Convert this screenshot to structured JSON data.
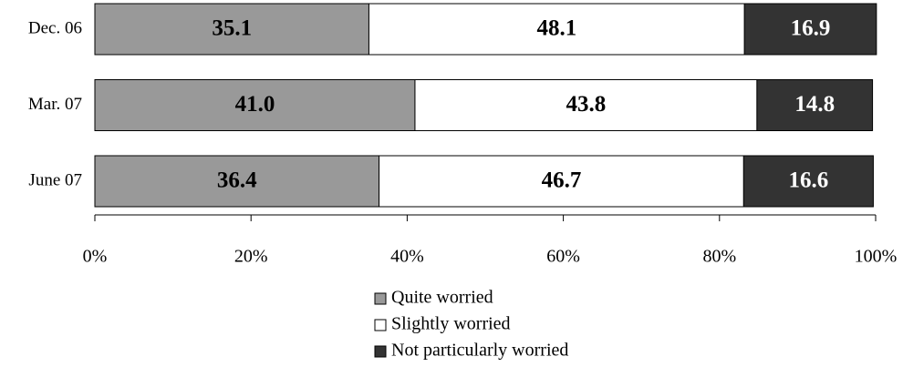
{
  "chart_data": {
    "type": "stacked-barh",
    "categories": [
      "Dec. 06",
      "Mar. 07",
      "June 07"
    ],
    "series": [
      {
        "name": "Quite worried",
        "color": "#999999",
        "values": [
          35.1,
          41.0,
          36.4
        ],
        "value_labels": [
          "35.1",
          "41.0",
          "36.4"
        ]
      },
      {
        "name": "Slightly worried",
        "color": "#ffffff",
        "values": [
          48.1,
          43.8,
          46.7
        ],
        "value_labels": [
          "48.1",
          "43.8",
          "46.7"
        ]
      },
      {
        "name": "Not particularly worried",
        "color": "#333333",
        "values": [
          16.9,
          14.8,
          16.6
        ],
        "value_labels": [
          "16.9",
          "14.8",
          "16.6"
        ]
      }
    ],
    "xlim": [
      0,
      100
    ],
    "xticks": [
      {
        "value": 0,
        "label": "0%"
      },
      {
        "value": 20,
        "label": "20%"
      },
      {
        "value": 40,
        "label": "40%"
      },
      {
        "value": 60,
        "label": "60%"
      },
      {
        "value": 80,
        "label": "80%"
      },
      {
        "value": 100,
        "label": "100%"
      }
    ],
    "legend": "bottom"
  }
}
